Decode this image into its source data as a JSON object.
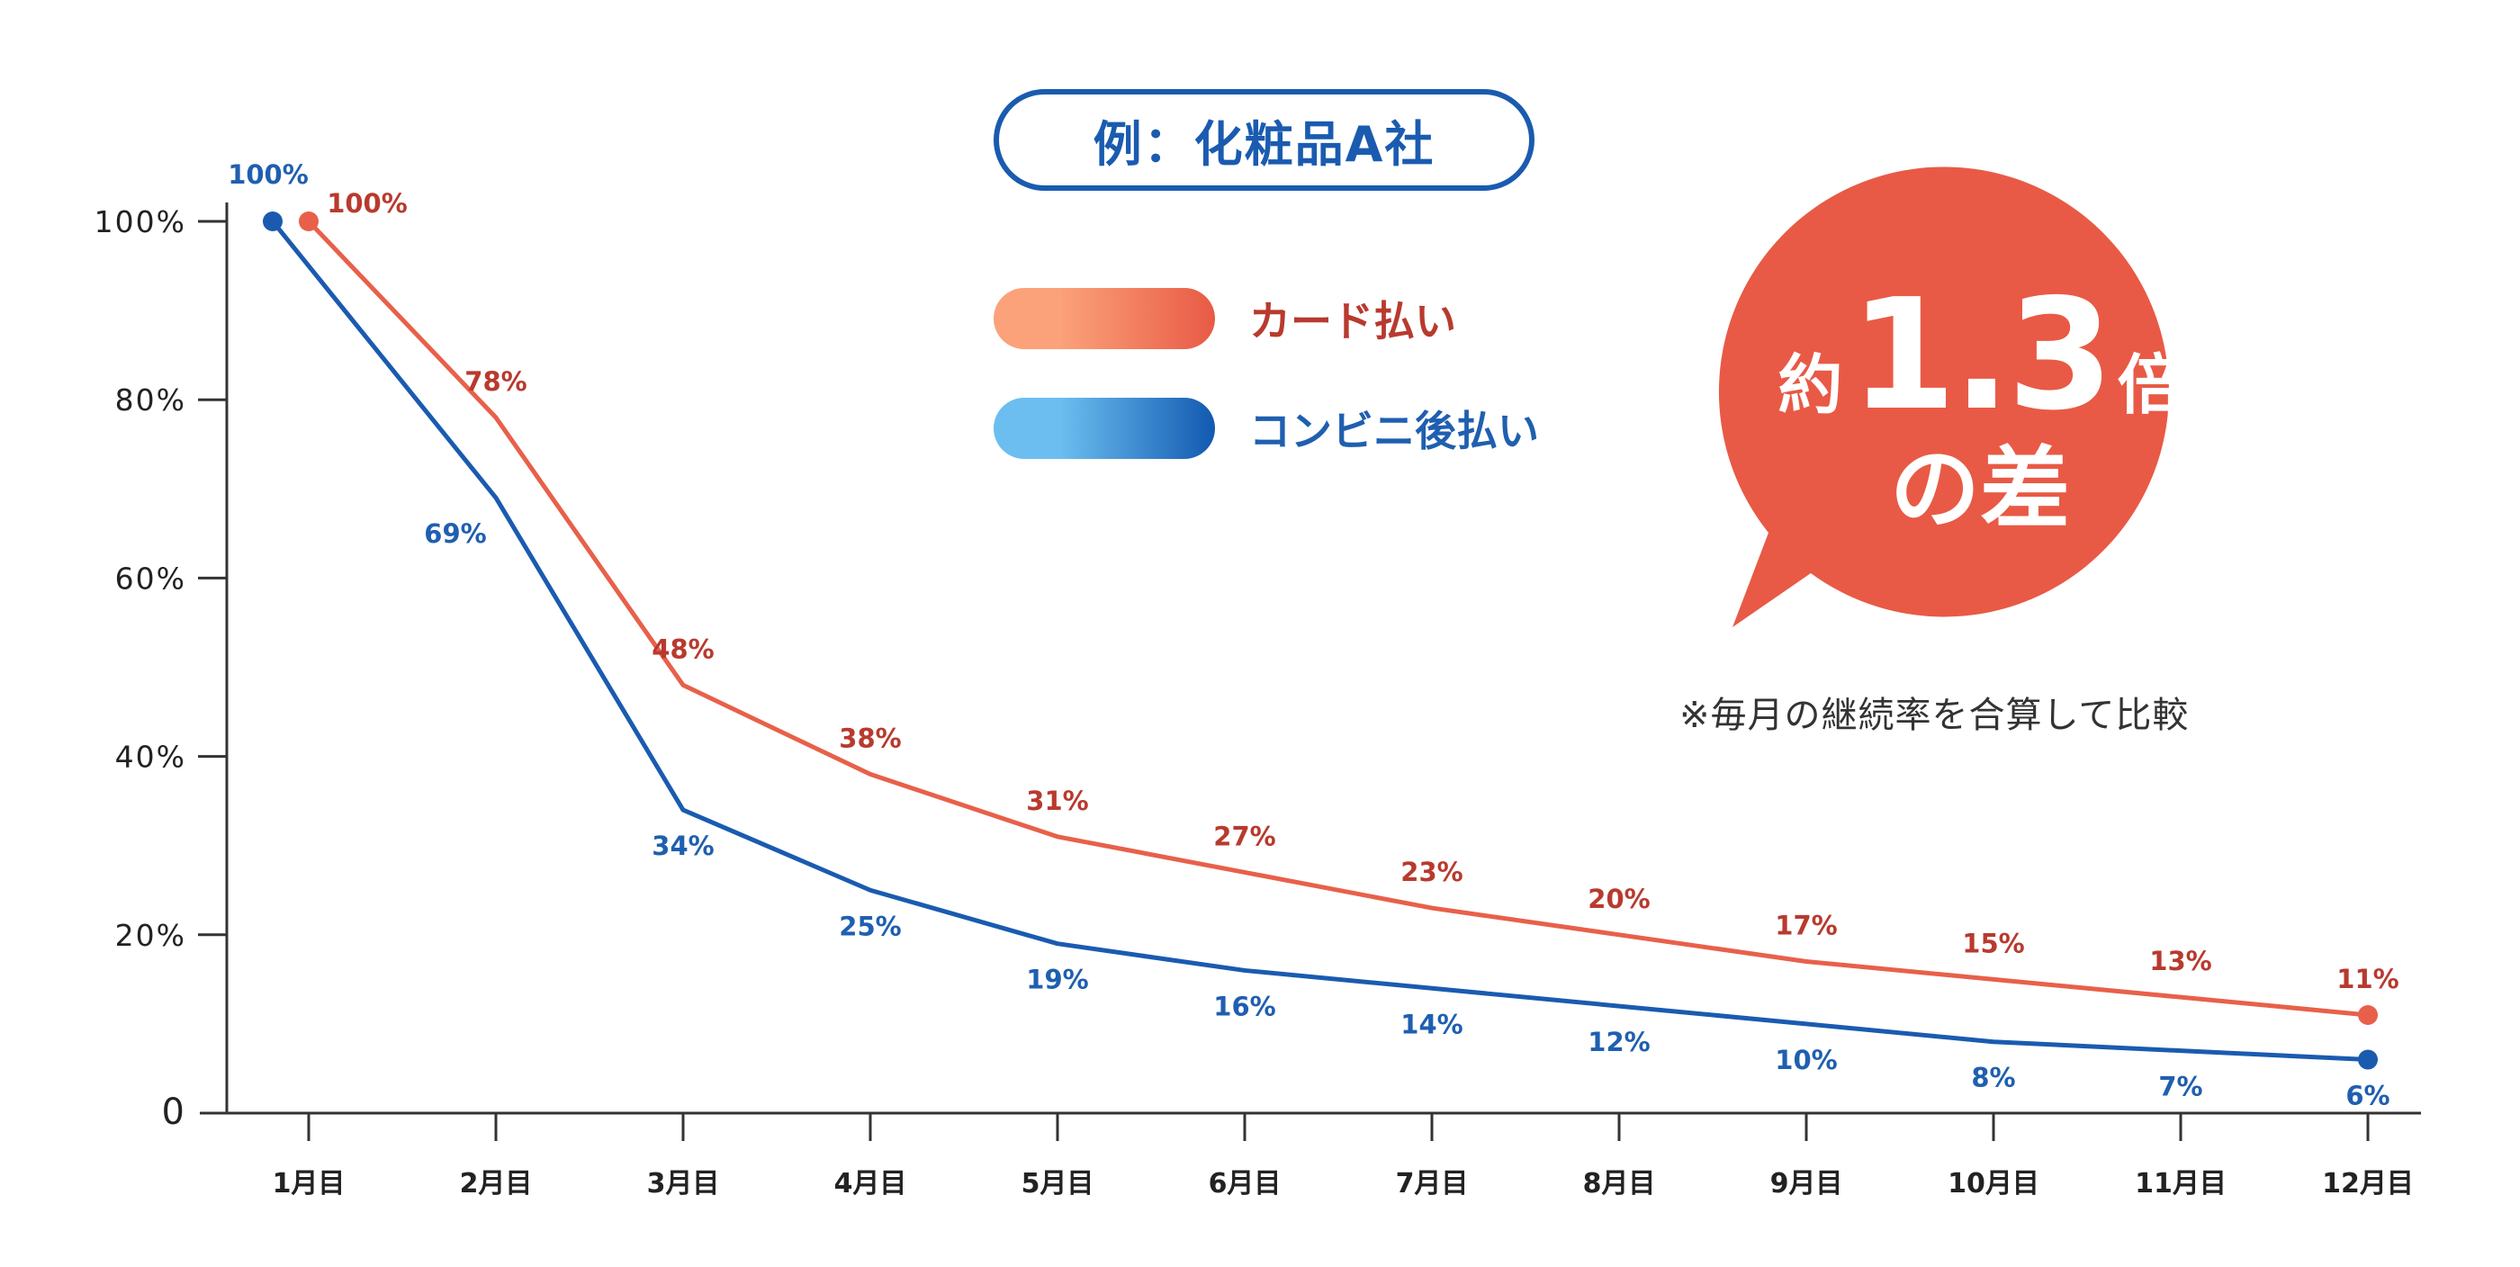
{
  "title": "例：化粧品A社",
  "legend": [
    {
      "label": "カード払い",
      "series": "card"
    },
    {
      "label": "コンビニ後払い",
      "series": "conbini"
    }
  ],
  "callout": {
    "prefix": "約",
    "number": "1.3",
    "suffix": "倍",
    "line2": "の差"
  },
  "note": "※毎月の継続率を合算して比較",
  "colors": {
    "card_line": "#E8604A",
    "card_label": "#B83A2E",
    "conbini_line": "#1A5BB0",
    "conbini_label": "#1F5FB0",
    "bubble": "#E85A45",
    "axis": "#333333",
    "card_grad_start": "#FBA27A",
    "card_grad_end": "#E85A45",
    "conbini_grad_start": "#6CBEF0",
    "conbini_grad_end": "#1259B0"
  },
  "chart_data": {
    "type": "line",
    "title": "例：化粧品A社",
    "xlabel": "",
    "ylabel": "",
    "categories": [
      "1月目",
      "2月目",
      "3月目",
      "4月目",
      "5月目",
      "6月目",
      "7月目",
      "8月目",
      "9月目",
      "10月目",
      "11月目",
      "12月目"
    ],
    "yticks": [
      {
        "value": 0,
        "label": "0"
      },
      {
        "value": 20,
        "label": "20%"
      },
      {
        "value": 40,
        "label": "40%"
      },
      {
        "value": 60,
        "label": "60%"
      },
      {
        "value": 80,
        "label": "80%"
      },
      {
        "value": 100,
        "label": "100%"
      }
    ],
    "ylim": [
      0,
      100
    ],
    "grid": false,
    "legend_position": "top-center",
    "series": [
      {
        "name": "カード払い",
        "key": "card",
        "values": [
          100,
          78,
          48,
          38,
          31,
          27,
          23,
          20,
          17,
          15,
          13,
          11
        ],
        "labels": [
          "100%",
          "78%",
          "48%",
          "38%",
          "31%",
          "27%",
          "23%",
          "20%",
          "17%",
          "15%",
          "13%",
          "11%"
        ]
      },
      {
        "name": "コンビニ後払い",
        "key": "conbini",
        "values": [
          100,
          69,
          34,
          25,
          19,
          16,
          14,
          12,
          10,
          8,
          7,
          6
        ],
        "labels": [
          "100%",
          "69%",
          "34%",
          "25%",
          "19%",
          "16%",
          "14%",
          "12%",
          "10%",
          "8%",
          "7%",
          "6%"
        ]
      }
    ],
    "annotations": [
      "約1.3倍の差",
      "※毎月の継続率を合算して比較"
    ]
  }
}
